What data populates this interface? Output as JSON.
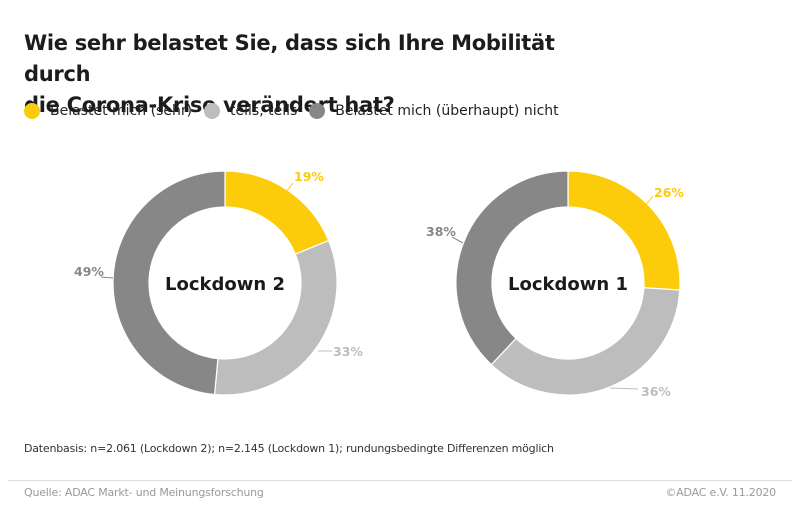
{
  "header": {
    "title_line1": "Wie sehr belastet Sie, dass sich Ihre Mobilität durch",
    "title_line2": "die Corona-Krise verändert hat?"
  },
  "colors": {
    "sehr": "#fccb0a",
    "teils": "#bdbdbd",
    "nicht": "#878787",
    "text_dark": "#1c1c1c",
    "text_muted": "#9a9a9a"
  },
  "chart_data": [
    {
      "type": "pie",
      "variant": "donut",
      "center_label": "Lockdown 2",
      "categories": [
        "Belastet mich (sehr)",
        "teils, teils",
        "Belastet mich (überhaupt) nicht"
      ],
      "values": [
        19,
        33,
        49
      ],
      "labels": [
        "19%",
        "33%",
        "49%"
      ],
      "unit": "%",
      "start": "12 o'clock",
      "direction": "clockwise"
    },
    {
      "type": "pie",
      "variant": "donut",
      "center_label": "Lockdown 1",
      "categories": [
        "Belastet mich (sehr)",
        "teils, teils",
        "Belastet mich (überhaupt) nicht"
      ],
      "values": [
        26,
        36,
        38
      ],
      "labels": [
        "26%",
        "36%",
        "38%"
      ],
      "unit": "%",
      "start": "12 o'clock",
      "direction": "clockwise"
    }
  ],
  "legend": {
    "position": "top-left",
    "items": [
      {
        "label": "Belastet mich (sehr)",
        "color": "#fccb0a"
      },
      {
        "label": "teils, teils",
        "color": "#bdbdbd"
      },
      {
        "label": "Belastet mich (überhaupt) nicht",
        "color": "#878787"
      }
    ]
  },
  "footer": {
    "note": "Datenbasis: n=2.061 (Lockdown 2); n=2.145 (Lockdown 1); rundungsbedingte Differenzen möglich",
    "source": "Quelle: ADAC Markt- und Meinungsforschung",
    "copyright": "©ADAC e.V.  11.2020"
  }
}
